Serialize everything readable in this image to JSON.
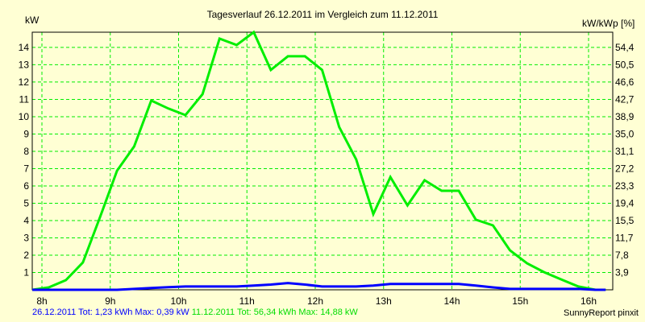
{
  "chart_data": {
    "type": "line",
    "title": "Tagesverlauf 26.12.2011 im Vergleich zum 11.12.2011",
    "ylabel": "kW",
    "y2label": "kW/kWp [%]",
    "xlabel": "",
    "xlim": [
      7.86,
      16.35
    ],
    "ylim": [
      0,
      14.88
    ],
    "grid": true,
    "x_ticks": [
      8,
      9,
      10,
      11,
      12,
      13,
      14,
      15,
      16
    ],
    "x_tick_labels": [
      "8h",
      "9h",
      "10h",
      "11h",
      "12h",
      "13h",
      "14h",
      "15h",
      "16h"
    ],
    "y_ticks": [
      1,
      2,
      3,
      4,
      5,
      6,
      7,
      8,
      9,
      10,
      11,
      12,
      13,
      14
    ],
    "y_tick_labels": [
      "1",
      "2",
      "3",
      "4",
      "5",
      "6",
      "7",
      "8",
      "9",
      "10",
      "11",
      "12",
      "13",
      "14"
    ],
    "y2_tick_labels": [
      "3,9",
      "7,8",
      "11,7",
      "15,5",
      "19,4",
      "23,3",
      "27,2",
      "31,1",
      "35,0",
      "38,9",
      "42,7",
      "46,6",
      "50,5",
      "54,4"
    ],
    "series": [
      {
        "name": "11.12.2011",
        "color": "#00ee00",
        "x": [
          7.86,
          8.1,
          8.35,
          8.6,
          8.85,
          9.1,
          9.35,
          9.6,
          9.85,
          10.1,
          10.35,
          10.6,
          10.85,
          11.1,
          11.35,
          11.6,
          11.85,
          12.1,
          12.35,
          12.6,
          12.85,
          13.1,
          13.35,
          13.6,
          13.85,
          14.1,
          14.35,
          14.6,
          14.85,
          15.1,
          15.35,
          15.6,
          15.85,
          16.1,
          16.35
        ],
        "values": [
          0,
          0.14,
          0.56,
          1.58,
          4.19,
          6.88,
          8.28,
          10.93,
          10.47,
          10.09,
          11.3,
          14.51,
          14.14,
          14.88,
          12.7,
          13.49,
          13.49,
          12.7,
          9.4,
          7.53,
          4.37,
          6.51,
          4.88,
          6.33,
          5.72,
          5.72,
          4.05,
          3.72,
          2.28,
          1.53,
          1.02,
          0.6,
          0.19,
          0,
          0
        ]
      },
      {
        "name": "26.12.2011",
        "color": "#0000ff",
        "x": [
          7.86,
          9.1,
          9.35,
          9.6,
          9.85,
          10.1,
          10.35,
          10.6,
          10.85,
          11.1,
          11.35,
          11.6,
          11.85,
          12.1,
          12.35,
          12.6,
          12.85,
          13.1,
          13.35,
          13.6,
          13.85,
          14.1,
          14.35,
          14.6,
          14.85,
          15.1,
          15.35,
          15.6,
          15.85,
          16.1,
          16.35
        ],
        "values": [
          0,
          0,
          0.05,
          0.1,
          0.15,
          0.19,
          0.19,
          0.19,
          0.19,
          0.24,
          0.3,
          0.39,
          0.3,
          0.19,
          0.19,
          0.19,
          0.24,
          0.34,
          0.34,
          0.34,
          0.34,
          0.34,
          0.24,
          0.14,
          0.05,
          0.05,
          0.05,
          0.05,
          0.05,
          0,
          0
        ]
      }
    ]
  },
  "legend": {
    "blue_text": "26.12.2011 Tot: 1,23 kWh Max: 0,39 kW",
    "green_text": "11.12.2011 Tot: 56,34 kWh Max: 14,88 kW"
  },
  "credit": "SunnyReport pinxit"
}
